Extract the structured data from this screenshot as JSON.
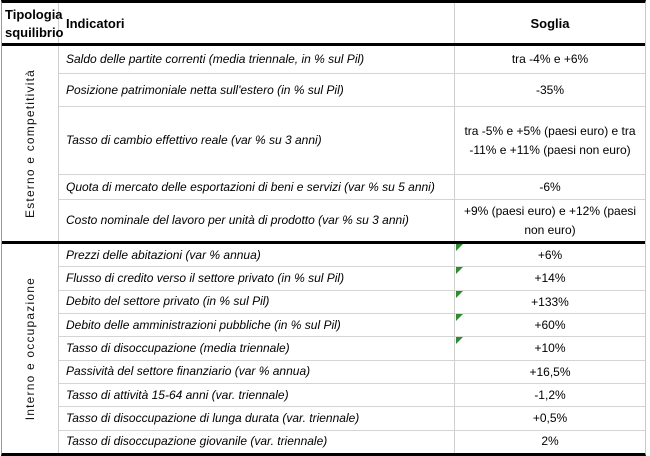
{
  "header": {
    "col1": "Tipologia squilibrio",
    "col2": "Indicatori",
    "col3": "Soglia"
  },
  "sections": [
    {
      "label": "Esterno e competitività",
      "rows": [
        {
          "indicator": "Saldo delle partite correnti (media triennale, in % sul Pil)",
          "threshold": "tra -4% e +6%",
          "flag": false
        },
        {
          "indicator": "Posizione patrimoniale netta sull'estero (in % sul Pil)",
          "threshold": "-35%",
          "flag": false
        },
        {
          "indicator": "Tasso di cambio effettivo reale (var % su 3 anni)",
          "threshold": "tra -5% e +5% (paesi euro) e tra -11% e +11% (paesi non euro)",
          "flag": false
        },
        {
          "indicator": "Quota di mercato delle esportazioni di beni e servizi (var % su 5 anni)",
          "threshold": "-6%",
          "flag": false
        },
        {
          "indicator": "Costo nominale del lavoro per unità di prodotto (var % su 3 anni)",
          "threshold": "+9% (paesi euro) e +12% (paesi non euro)",
          "flag": false
        }
      ]
    },
    {
      "label": "Interno e occupazione",
      "rows": [
        {
          "indicator": "Prezzi delle abitazioni (var % annua)",
          "threshold": "+6%",
          "flag": true
        },
        {
          "indicator": "Flusso di credito verso il settore privato (in % sul Pil)",
          "threshold": "+14%",
          "flag": true
        },
        {
          "indicator": "Debito del settore privato (in % sul Pil)",
          "threshold": "+133%",
          "flag": true
        },
        {
          "indicator": "Debito delle amministrazioni pubbliche (in % sul Pil)",
          "threshold": "+60%",
          "flag": true
        },
        {
          "indicator": "Tasso di disoccupazione (media triennale)",
          "threshold": "+10%",
          "flag": true
        },
        {
          "indicator": "Passività del settore finanziario (var % annua)",
          "threshold": "+16,5%",
          "flag": false
        },
        {
          "indicator": "Tasso di attività 15-64 anni (var. triennale)",
          "threshold": "-1,2%",
          "flag": false
        },
        {
          "indicator": "Tasso di disoccupazione di lunga durata (var. triennale)",
          "threshold": "+0,5%",
          "flag": false
        },
        {
          "indicator": "Tasso di disoccupazione giovanile (var. triennale)",
          "threshold": "2%",
          "flag": false
        }
      ]
    }
  ],
  "colors": {
    "border_strong": "#000000",
    "border_light": "#d4d4d4",
    "flag_green": "#2e8b2e"
  }
}
